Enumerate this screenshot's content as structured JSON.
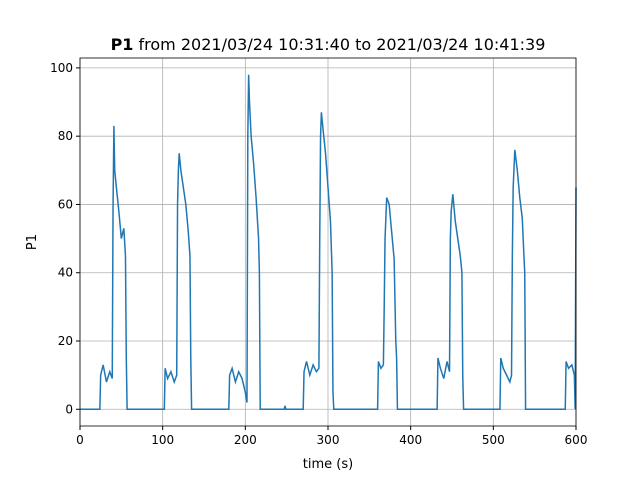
{
  "chart_data": {
    "type": "line",
    "title_bold": "P1",
    "title": "from 2021/03/24 10:31:40 to 2021/03/24 10:41:39",
    "xlabel": "time (s)",
    "ylabel": "P1",
    "x": [
      0,
      24,
      25,
      28,
      32,
      36,
      39,
      40,
      41,
      42,
      44,
      47,
      50,
      53,
      55,
      56,
      57,
      100,
      102,
      103,
      106,
      110,
      114,
      117,
      118,
      119,
      120,
      122,
      125,
      128,
      131,
      133,
      134,
      135,
      180,
      181,
      184,
      188,
      192,
      196,
      200,
      202,
      203,
      204,
      205,
      207,
      210,
      213,
      216,
      217,
      218,
      247,
      248,
      249,
      270,
      271,
      274,
      278,
      282,
      286,
      289,
      290,
      291,
      292,
      294,
      297,
      300,
      303,
      305,
      306,
      307,
      360,
      361,
      364,
      367,
      368,
      369,
      371,
      374,
      377,
      380,
      382,
      383,
      384,
      432,
      433,
      436,
      440,
      444,
      447,
      448,
      449,
      451,
      454,
      457,
      460,
      462,
      463,
      464,
      508,
      509,
      512,
      516,
      520,
      522,
      523,
      524,
      526,
      529,
      532,
      535,
      537,
      538,
      539,
      587,
      588,
      591,
      595,
      598,
      599,
      600
    ],
    "series": [
      {
        "name": "P1",
        "color": "#1f77b4",
        "values": [
          0,
          0,
          10,
          13,
          8,
          11,
          9,
          60,
          83,
          70,
          65,
          58,
          50,
          53,
          45,
          15,
          0,
          0,
          0,
          12,
          9,
          11,
          8,
          10,
          60,
          70,
          75,
          70,
          65,
          60,
          52,
          45,
          15,
          0,
          0,
          10,
          12,
          8,
          11,
          9,
          5,
          2,
          80,
          98,
          90,
          80,
          72,
          62,
          50,
          40,
          0,
          0,
          1,
          0,
          0,
          11,
          14,
          10,
          13,
          11,
          12,
          50,
          80,
          87,
          82,
          75,
          65,
          55,
          40,
          5,
          0,
          0,
          14,
          12,
          13,
          30,
          50,
          62,
          60,
          52,
          44,
          20,
          15,
          0,
          0,
          15,
          12,
          9,
          14,
          11,
          50,
          58,
          63,
          55,
          50,
          45,
          40,
          10,
          0,
          0,
          15,
          12,
          10,
          8,
          10,
          45,
          65,
          76,
          70,
          62,
          56,
          45,
          40,
          0,
          0,
          14,
          12,
          13,
          10,
          0,
          65
        ]
      }
    ],
    "xlim": [
      0,
      600
    ],
    "xticks": [
      0,
      100,
      200,
      300,
      400,
      500,
      600
    ],
    "ylim": [
      -4.9,
      102.9
    ],
    "yticks": [
      0,
      20,
      40,
      60,
      80,
      100
    ],
    "grid": true
  }
}
